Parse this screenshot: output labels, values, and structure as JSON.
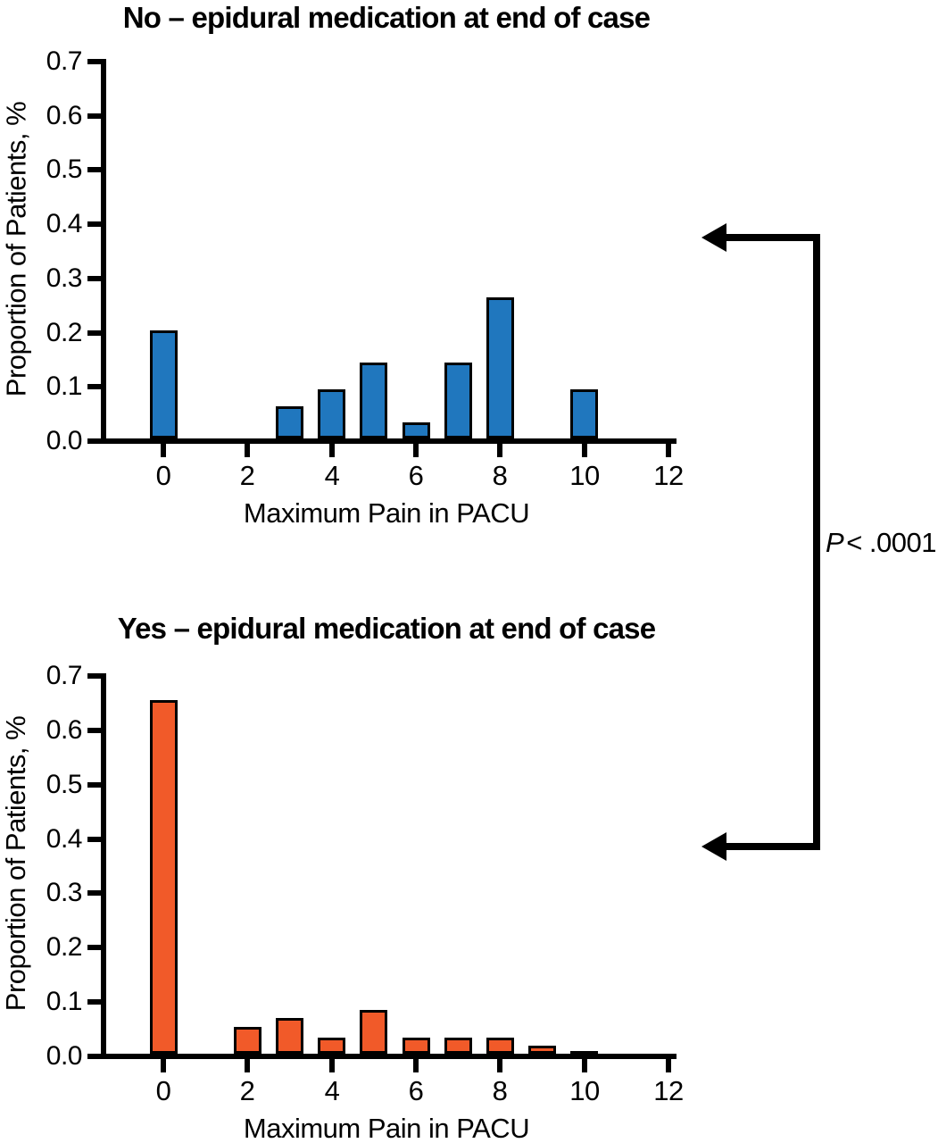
{
  "annotation": {
    "p_label": "P",
    "p_value": "< .0001"
  },
  "chart_data": [
    {
      "type": "bar",
      "title": "No – epidural medication at end of case",
      "xlabel": "Maximum Pain in PACU",
      "ylabel": "Proportion of Patients, %",
      "bar_color": "#2077BE",
      "bar_edge_color": "#000000",
      "x": [
        0,
        3,
        4,
        5,
        6,
        7,
        8,
        10
      ],
      "values": [
        0.2,
        0.06,
        0.09,
        0.14,
        0.03,
        0.14,
        0.26,
        0.09
      ],
      "x_ticks": [
        "0",
        "2",
        "4",
        "6",
        "8",
        "10",
        "12"
      ],
      "y_ticks": [
        "0.0",
        "0.1",
        "0.2",
        "0.3",
        "0.4",
        "0.5",
        "0.6",
        "0.7"
      ],
      "xlim": [
        0,
        12
      ],
      "ylim": [
        0,
        0.7
      ],
      "grid": false,
      "legend": null
    },
    {
      "type": "bar",
      "title": "Yes – epidural medication at end of case",
      "xlabel": "Maximum Pain in PACU",
      "ylabel": "Proportion of Patients, %",
      "bar_color": "#F15A29",
      "bar_edge_color": "#000000",
      "x": [
        0,
        2,
        3,
        4,
        5,
        6,
        7,
        8,
        9,
        10
      ],
      "values": [
        0.65,
        0.05,
        0.065,
        0.03,
        0.08,
        0.03,
        0.03,
        0.03,
        0.015,
        0.005
      ],
      "x_ticks": [
        "0",
        "2",
        "4",
        "6",
        "8",
        "10",
        "12"
      ],
      "y_ticks": [
        "0.0",
        "0.1",
        "0.2",
        "0.3",
        "0.4",
        "0.5",
        "0.6",
        "0.7"
      ],
      "xlim": [
        0,
        12
      ],
      "ylim": [
        0,
        0.7
      ],
      "grid": false,
      "legend": null
    }
  ]
}
